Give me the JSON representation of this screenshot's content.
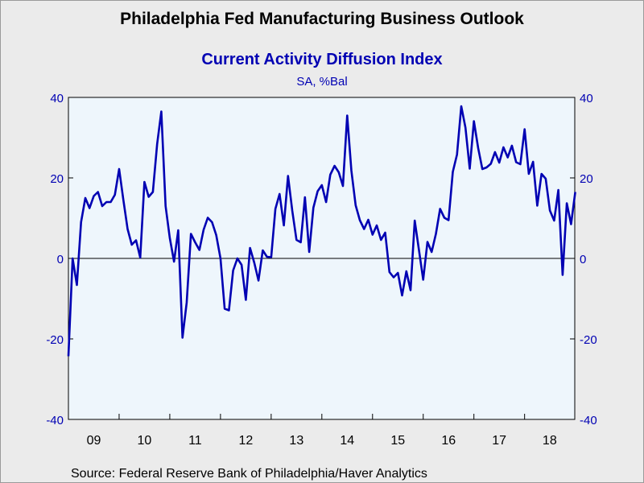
{
  "chart_data": {
    "type": "line",
    "title": "Philadelphia Fed Manufacturing Business Outlook",
    "subtitle": "Current Activity Diffusion Index",
    "units": "SA, %Bal",
    "source": "Source:  Federal Reserve Bank of Philadelphia/Haver Analytics",
    "ylim": [
      -40,
      40
    ],
    "y_ticks": [
      "40",
      "20",
      "0",
      "-20",
      "-40"
    ],
    "y_tick_values": [
      40,
      20,
      0,
      -20,
      -40
    ],
    "x_range": [
      2009.0,
      2018.99
    ],
    "x_ticks": [
      {
        "label": "09",
        "year": 2009
      },
      {
        "label": "10",
        "year": 2010
      },
      {
        "label": "11",
        "year": 2011
      },
      {
        "label": "12",
        "year": 2012
      },
      {
        "label": "13",
        "year": 2013
      },
      {
        "label": "14",
        "year": 2014
      },
      {
        "label": "15",
        "year": 2015
      },
      {
        "label": "16",
        "year": 2016
      },
      {
        "label": "17",
        "year": 2017
      },
      {
        "label": "18",
        "year": 2018
      }
    ],
    "grid": false,
    "zero_line": true,
    "start": "2009-01",
    "frequency": "monthly",
    "series": [
      {
        "color": "#0000b3",
        "values": [
          -24.3,
          0,
          -6.6,
          9,
          15,
          12.5,
          15.5,
          16.5,
          13,
          14,
          14,
          15.8,
          22.2,
          14.6,
          7.3,
          3.4,
          4.5,
          0.2,
          19,
          15.3,
          16.5,
          28.4,
          36.5,
          13,
          5.1,
          -0.8,
          7,
          -19.7,
          -11,
          6.1,
          4,
          2.1,
          7.1,
          10.1,
          9,
          5.8,
          0,
          -12.5,
          -12.9,
          -3,
          0,
          -1.6,
          -10.3,
          2.6,
          -1.1,
          -5.5,
          2,
          0.4,
          0.3,
          12.3,
          16,
          8.2,
          20.5,
          11.8,
          4.6,
          4,
          15.2,
          1.6,
          12.6,
          16.7,
          18.2,
          14,
          20.8,
          23,
          21.4,
          18,
          35.5,
          21.8,
          13.2,
          9.5,
          7.3,
          9.6,
          5.9,
          8.2,
          4.6,
          6.4,
          -3.4,
          -4.7,
          -3.6,
          -9.2,
          -3.2,
          -7.9,
          9.4,
          2,
          -5.3,
          4.1,
          1.6,
          6.1,
          12.3,
          10.1,
          9.5,
          21.5,
          25.8,
          37.8,
          32.5,
          22.3,
          34.1,
          27.4,
          22.2,
          22.6,
          23.5,
          26.4,
          23.8,
          27.6,
          25.1,
          28,
          23.9,
          23.4,
          32.1,
          21,
          24,
          13.1,
          21,
          19.8,
          11.9,
          9.4,
          17,
          -4.1,
          13.7,
          8.5,
          16.5
        ]
      }
    ]
  }
}
